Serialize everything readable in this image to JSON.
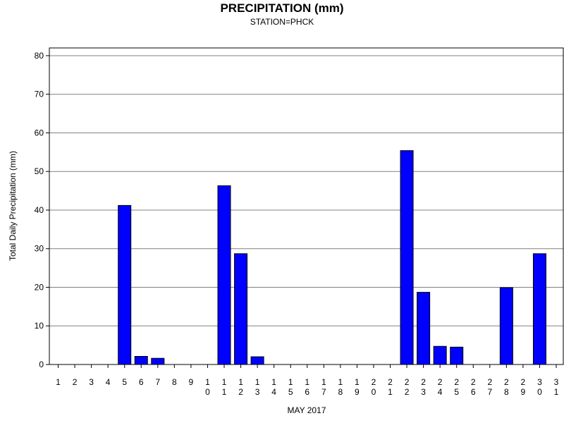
{
  "chart_data": {
    "type": "bar",
    "title": "PRECIPITATION (mm)",
    "subtitle": "STATION=PHCK",
    "xlabel": "MAY 2017",
    "ylabel": "Total Daily Precipitation (mm)",
    "ylim": [
      0,
      82
    ],
    "yticks": [
      "0",
      "10",
      "20",
      "30",
      "40",
      "50",
      "60",
      "70",
      "80"
    ],
    "grid": true,
    "bar_color": "#0000ff",
    "categories": [
      [
        "1"
      ],
      [
        "2"
      ],
      [
        "3"
      ],
      [
        "4"
      ],
      [
        "5"
      ],
      [
        "6"
      ],
      [
        "7"
      ],
      [
        "8"
      ],
      [
        "9"
      ],
      [
        "1",
        "0"
      ],
      [
        "1",
        "1"
      ],
      [
        "1",
        "2"
      ],
      [
        "1",
        "3"
      ],
      [
        "1",
        "4"
      ],
      [
        "1",
        "5"
      ],
      [
        "1",
        "6"
      ],
      [
        "1",
        "7"
      ],
      [
        "1",
        "8"
      ],
      [
        "1",
        "9"
      ],
      [
        "2",
        "0"
      ],
      [
        "2",
        "1"
      ],
      [
        "2",
        "2"
      ],
      [
        "2",
        "3"
      ],
      [
        "2",
        "4"
      ],
      [
        "2",
        "5"
      ],
      [
        "2",
        "6"
      ],
      [
        "2",
        "7"
      ],
      [
        "2",
        "8"
      ],
      [
        "2",
        "9"
      ],
      [
        "3",
        "0"
      ],
      [
        "3",
        "1"
      ]
    ],
    "values": [
      0,
      0,
      0,
      0,
      41.2,
      2.1,
      1.6,
      0,
      0,
      0,
      46.3,
      28.7,
      2.0,
      0,
      0,
      0,
      0,
      0,
      0,
      0,
      0,
      55.4,
      18.7,
      4.7,
      4.5,
      0,
      0,
      19.9,
      0,
      28.7,
      0
    ]
  }
}
